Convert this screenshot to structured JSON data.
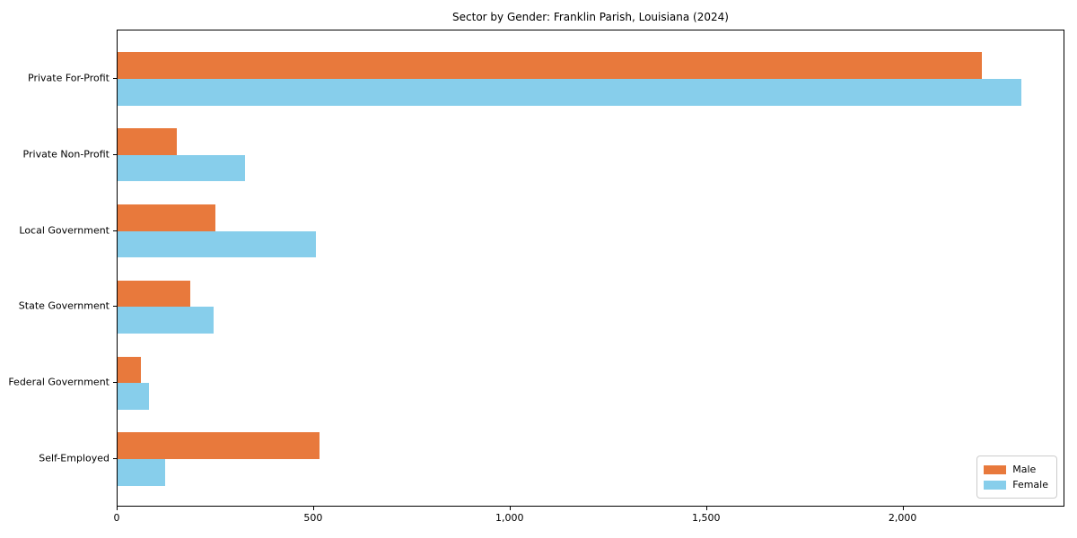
{
  "chart_data": {
    "type": "bar",
    "orientation": "horizontal",
    "title": "Sector by Gender: Franklin Parish, Louisiana (2024)",
    "xlabel": "",
    "ylabel": "",
    "categories": [
      "Private For-Profit",
      "Private Non-Profit",
      "Local Government",
      "State Government",
      "Federal Government",
      "Self-Employed"
    ],
    "series": [
      {
        "name": "Male",
        "color": "#E8793C",
        "values": [
          2200,
          150,
          250,
          185,
          60,
          515
        ]
      },
      {
        "name": "Female",
        "color": "#87CEEB",
        "values": [
          2300,
          325,
          505,
          245,
          80,
          120
        ]
      }
    ],
    "xlim": [
      0,
      2412
    ],
    "x_ticks": [
      {
        "value": 0,
        "label": "0"
      },
      {
        "value": 500,
        "label": "500"
      },
      {
        "value": 1000,
        "label": "1,000"
      },
      {
        "value": 1500,
        "label": "1,500"
      },
      {
        "value": 2000,
        "label": "2,000"
      }
    ],
    "grid": false,
    "legend_position": "lower right"
  },
  "colors": {
    "background": "#ffffff",
    "spine": "#000000",
    "text": "#000000",
    "legend_border": "#cccccc"
  }
}
